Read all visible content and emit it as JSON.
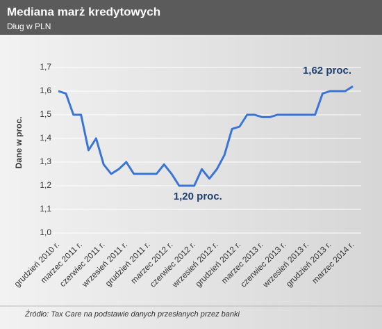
{
  "chart_data": {
    "type": "line",
    "title": "Mediana marż kredytowych",
    "subtitle": "Dług w PLN",
    "y_label": "Dane w proc.",
    "source": "Źródło: Tax Care na podstawie danych przesłanych przez banki",
    "categories": [
      "grudzień 2010 r.",
      null,
      null,
      "marzec 2011 r.",
      null,
      null,
      "czerwiec 2011 r.",
      null,
      null,
      "wrzesień 2011 r.",
      null,
      null,
      "grudzień 2011 r.",
      null,
      null,
      "marzec 2012 r.",
      null,
      null,
      "czerwiec 2012 r.",
      null,
      null,
      "wrzesień 2012 r.",
      null,
      null,
      "grudzień 2012 r.",
      null,
      null,
      "marzec 2013 r.",
      null,
      null,
      "czerwiec 2013 r.",
      null,
      null,
      "wrzesień 2013 r.",
      null,
      null,
      "grudzień 2013 r.",
      null,
      null,
      "marzec 2014 r."
    ],
    "series": [
      {
        "name": "Mediana marż",
        "color": "#3a75d6",
        "values": [
          1.6,
          1.59,
          1.5,
          1.5,
          1.35,
          1.4,
          1.29,
          1.25,
          1.27,
          1.3,
          1.25,
          1.25,
          1.25,
          1.25,
          1.29,
          1.25,
          1.2,
          1.2,
          1.2,
          1.27,
          1.23,
          1.27,
          1.33,
          1.44,
          1.45,
          1.5,
          1.5,
          1.49,
          1.49,
          1.5,
          1.5,
          1.5,
          1.5,
          1.5,
          1.5,
          1.59,
          1.6,
          1.6,
          1.6,
          1.62
        ]
      }
    ],
    "annotations": [
      {
        "text": "1,20 proc.",
        "index": 17
      },
      {
        "text": "1,62 proc.",
        "index": 39
      }
    ],
    "ylim": [
      1.0,
      1.7
    ],
    "yticks": [
      {
        "value": 1.0,
        "label": "1,0"
      },
      {
        "value": 1.1,
        "label": "1,1"
      },
      {
        "value": 1.2,
        "label": "1,2"
      },
      {
        "value": 1.3,
        "label": "1,3"
      },
      {
        "value": 1.4,
        "label": "1,4"
      },
      {
        "value": 1.5,
        "label": "1,5"
      },
      {
        "value": 1.6,
        "label": "1,6"
      },
      {
        "value": 1.7,
        "label": "1,7"
      }
    ],
    "grid": true
  }
}
